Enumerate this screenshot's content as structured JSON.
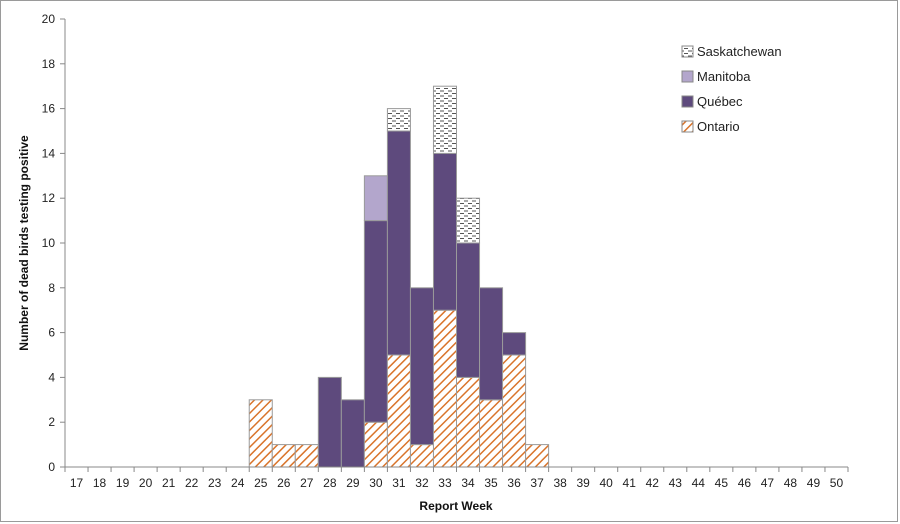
{
  "chart_data": {
    "type": "bar",
    "stacked": true,
    "title": "",
    "xlabel": "Report Week",
    "ylabel": "Number of dead birds testing positive",
    "ylim": [
      0,
      20
    ],
    "yticks": [
      0,
      2,
      4,
      6,
      8,
      10,
      12,
      14,
      16,
      18,
      20
    ],
    "grid": false,
    "legend_position": "top-right",
    "categories": [
      "17",
      "18",
      "19",
      "20",
      "21",
      "22",
      "23",
      "24",
      "25",
      "26",
      "27",
      "28",
      "29",
      "30",
      "31",
      "32",
      "33",
      "34",
      "35",
      "36",
      "37",
      "38",
      "39",
      "40",
      "41",
      "42",
      "43",
      "44",
      "45",
      "46",
      "47",
      "48",
      "49",
      "50"
    ],
    "series": [
      {
        "name": "Ontario",
        "pattern": "diagonal-hatch",
        "color": "#d9742b",
        "values": [
          0,
          0,
          0,
          0,
          0,
          0,
          0,
          0,
          3,
          1,
          1,
          0,
          0,
          2,
          5,
          1,
          7,
          4,
          3,
          5,
          1,
          0,
          0,
          0,
          0,
          0,
          0,
          0,
          0,
          0,
          0,
          0,
          0,
          0
        ]
      },
      {
        "name": "Québec",
        "pattern": "solid",
        "color": "#5e4a7d",
        "values": [
          0,
          0,
          0,
          0,
          0,
          0,
          0,
          0,
          0,
          0,
          0,
          4,
          3,
          9,
          10,
          7,
          7,
          6,
          5,
          1,
          0,
          0,
          0,
          0,
          0,
          0,
          0,
          0,
          0,
          0,
          0,
          0,
          0,
          0
        ]
      },
      {
        "name": "Manitoba",
        "pattern": "solid",
        "color": "#b3a6cc",
        "values": [
          0,
          0,
          0,
          0,
          0,
          0,
          0,
          0,
          0,
          0,
          0,
          0,
          0,
          2,
          0,
          0,
          0,
          0,
          0,
          0,
          0,
          0,
          0,
          0,
          0,
          0,
          0,
          0,
          0,
          0,
          0,
          0,
          0,
          0
        ]
      },
      {
        "name": "Saskatchewan",
        "pattern": "dashes",
        "color": "#ffffff",
        "values": [
          0,
          0,
          0,
          0,
          0,
          0,
          0,
          0,
          0,
          0,
          0,
          0,
          0,
          0,
          1,
          0,
          3,
          2,
          0,
          0,
          0,
          0,
          0,
          0,
          0,
          0,
          0,
          0,
          0,
          0,
          0,
          0,
          0,
          0
        ]
      }
    ],
    "legend_order": [
      "Saskatchewan",
      "Manitoba",
      "Québec",
      "Ontario"
    ]
  }
}
